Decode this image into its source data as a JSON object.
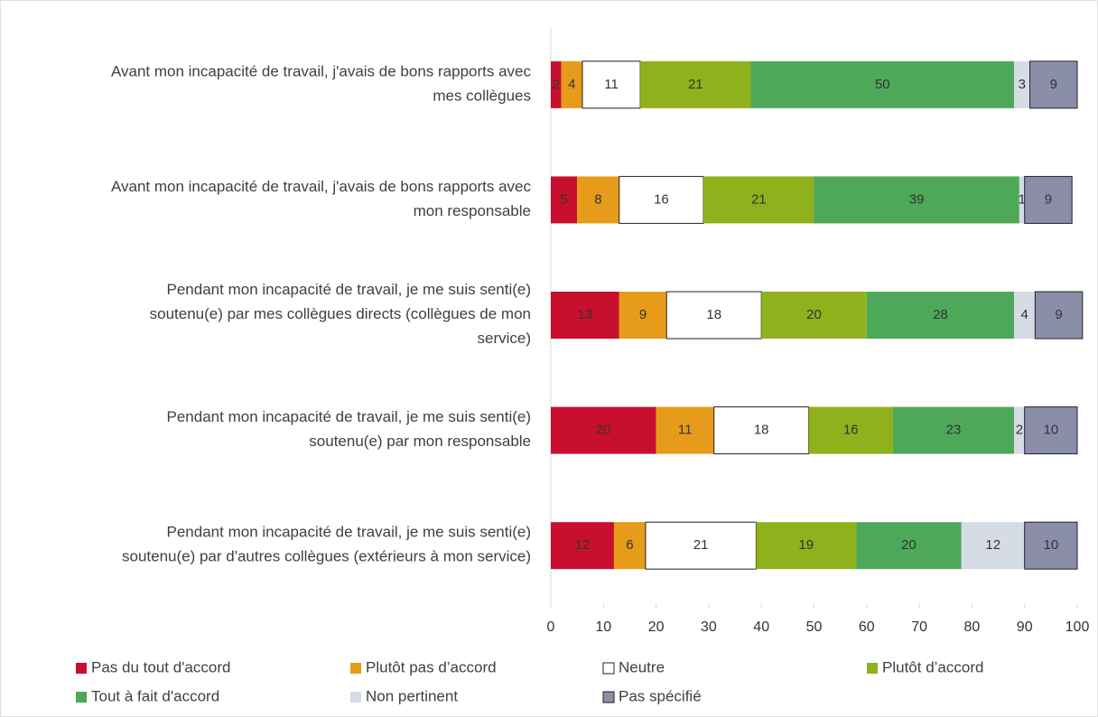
{
  "chart_data": {
    "type": "stacked_bar_horizontal",
    "categories": [
      "Avant mon incapacité de travail, j'avais de bons rapports avec\nmes collègues",
      "Avant mon incapacité de travail, j'avais de bons rapports avec\nmon responsable",
      "Pendant mon incapacité de travail, je me suis senti(e)\nsoutenu(e) par mes collègues directs (collègues de mon\nservice)",
      "Pendant mon incapacité de travail, je me suis senti(e)\nsoutenu(e) par mon responsable",
      "Pendant mon incapacité de travail, je me suis senti(e)\nsoutenu(e) par d'autres collègues (extérieurs à mon service)"
    ],
    "series": [
      {
        "name": "Pas du tout d'accord",
        "color": "#c8102e",
        "values": [
          2,
          5,
          13,
          20,
          12
        ]
      },
      {
        "name": "Plutôt pas d’accord",
        "color": "#e69b1a",
        "values": [
          4,
          8,
          9,
          11,
          6
        ]
      },
      {
        "name": "Neutre",
        "color": "#ffffff",
        "values": [
          11,
          16,
          18,
          18,
          21
        ]
      },
      {
        "name": "Plutôt d’accord",
        "color": "#8fb11b",
        "values": [
          21,
          21,
          20,
          16,
          19
        ]
      },
      {
        "name": "Tout à fait d'accord",
        "color": "#4ea85a",
        "values": [
          50,
          39,
          28,
          23,
          20
        ]
      },
      {
        "name": "Non pertinent",
        "color": "#d6dce6",
        "values": [
          3,
          1,
          4,
          2,
          12
        ]
      },
      {
        "name": "Pas spécifié",
        "color": "#8b8ea9",
        "values": [
          9,
          9,
          9,
          10,
          10
        ]
      }
    ],
    "xlim": [
      0,
      100
    ],
    "xticks": [
      0,
      10,
      20,
      30,
      40,
      50,
      60,
      70,
      80,
      90,
      100
    ],
    "legend": "bottom"
  }
}
